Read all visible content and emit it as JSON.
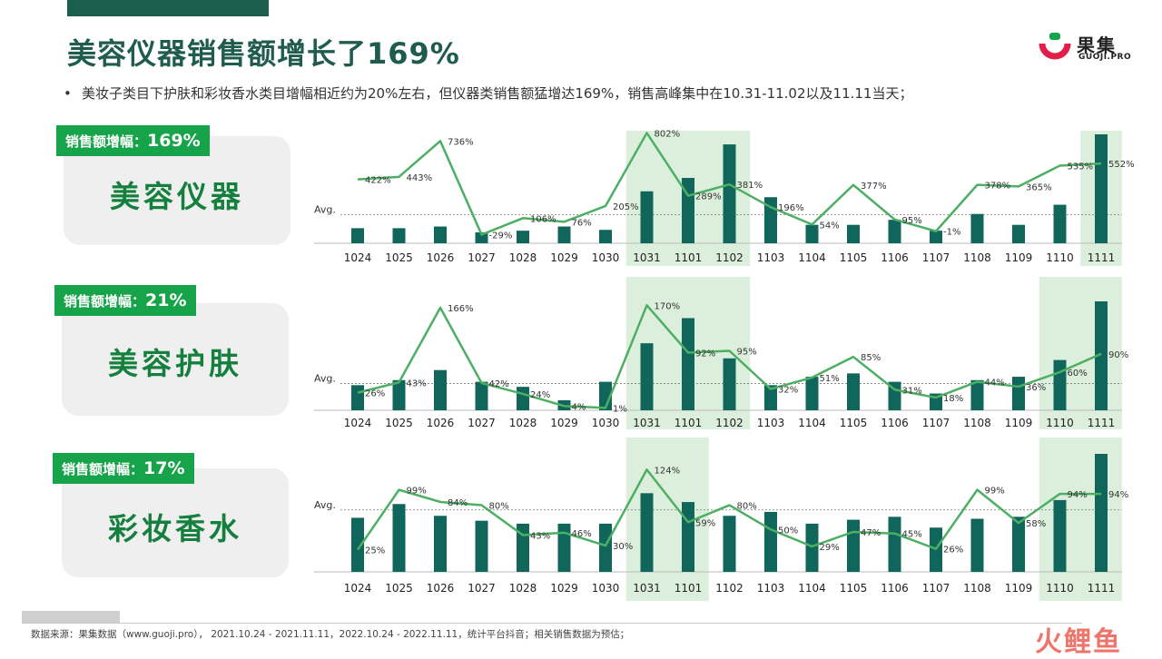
{
  "page": {
    "title": "美容仪器销售额增长了169%",
    "bullet": "美妆子类目下护肤和彩妆香水类目增幅相近约为20%左右，但仪器类销售额猛增达169%，销售高峰集中在10.31-11.02以及11.11当天；",
    "source": "数据来源：果集数据（www.guoji.pro）， 2021.10.24 - 2021.11.11，2022.10.24 - 2022.11.11，统计平台抖音；相关销售数据为预估；",
    "logo": {
      "name": "果集",
      "sub": "GUOJI.PRO"
    },
    "watermark": "火鲤鱼",
    "colors": {
      "bar": "#10665b",
      "line": "#4caf63",
      "highlight": "#dcefdc",
      "badge": "#16a34a",
      "title": "#1f5c4e"
    }
  },
  "chart_data": [
    {
      "type": "bar",
      "category": "美容仪器",
      "badge_label": "销售额增幅：",
      "badge_value": "169%",
      "avg_label": "Avg.",
      "categories": [
        "1024",
        "1025",
        "1026",
        "1027",
        "1028",
        "1029",
        "1030",
        "1031",
        "1101",
        "1102",
        "1103",
        "1104",
        "1105",
        "1106",
        "1107",
        "1108",
        "1109",
        "1110",
        "1111"
      ],
      "bars": [
        18,
        18,
        20,
        13,
        15,
        20,
        16,
        62,
        78,
        118,
        55,
        22,
        22,
        28,
        15,
        35,
        22,
        46,
        130
      ],
      "avg": 34,
      "growth": [
        422,
        443,
        736,
        -29,
        106,
        76,
        205,
        802,
        289,
        381,
        196,
        54,
        377,
        95,
        -1,
        378,
        365,
        535,
        552
      ],
      "growth_labels": [
        "422%",
        "443%",
        "736%",
        "-29%",
        "106%",
        "76%",
        "205%",
        "802%",
        "289%",
        "381%",
        "196%",
        "54%",
        "377%",
        "95%",
        "-1%",
        "378%",
        "365%",
        "535%",
        "552%"
      ],
      "highlight": [
        [
          7,
          9
        ],
        [
          18,
          18
        ]
      ]
    },
    {
      "type": "bar",
      "category": "美容护肤",
      "badge_label": "销售额增幅：",
      "badge_value": "21%",
      "avg_label": "Avg.",
      "categories": [
        "1024",
        "1025",
        "1026",
        "1027",
        "1028",
        "1029",
        "1030",
        "1031",
        "1101",
        "1102",
        "1103",
        "1104",
        "1105",
        "1106",
        "1107",
        "1108",
        "1109",
        "1110",
        "1111"
      ],
      "bars": [
        30,
        36,
        48,
        34,
        28,
        12,
        34,
        80,
        110,
        62,
        30,
        40,
        44,
        34,
        20,
        36,
        40,
        60,
        130
      ],
      "avg": 32,
      "growth": [
        26,
        43,
        166,
        42,
        24,
        4,
        1,
        170,
        92,
        95,
        32,
        51,
        85,
        31,
        18,
        44,
        36,
        60,
        90
      ],
      "growth_labels": [
        "26%",
        "43%",
        "166%",
        "42%",
        "24%",
        "4%",
        "1%",
        "170%",
        "92%",
        "95%",
        "32%",
        "51%",
        "85%",
        "31%",
        "18%",
        "44%",
        "36%",
        "60%",
        "90%"
      ],
      "highlight": [
        [
          7,
          9
        ],
        [
          17,
          18
        ]
      ]
    },
    {
      "type": "bar",
      "category": "彩妆香水",
      "badge_label": "销售额增幅：",
      "badge_value": "17%",
      "avg_label": "Avg.",
      "categories": [
        "1024",
        "1025",
        "1026",
        "1027",
        "1028",
        "1029",
        "1030",
        "1031",
        "1101",
        "1102",
        "1103",
        "1104",
        "1105",
        "1106",
        "1107",
        "1108",
        "1109",
        "1110",
        "1111"
      ],
      "bars": [
        55,
        69,
        57,
        52,
        49,
        49,
        49,
        80,
        71,
        57,
        61,
        49,
        53,
        56,
        45,
        54,
        56,
        73,
        120
      ],
      "avg": 63,
      "growth": [
        25,
        99,
        84,
        80,
        43,
        46,
        30,
        124,
        59,
        80,
        50,
        29,
        47,
        45,
        26,
        99,
        58,
        94,
        94
      ],
      "growth_labels": [
        "25%",
        "99%",
        "84%",
        "80%",
        "43%",
        "46%",
        "30%",
        "124%",
        "59%",
        "80%",
        "50%",
        "29%",
        "47%",
        "45%",
        "26%",
        "99%",
        "58%",
        "94%",
        "94%"
      ],
      "highlight": [
        [
          7,
          8
        ],
        [
          17,
          18
        ]
      ]
    }
  ]
}
